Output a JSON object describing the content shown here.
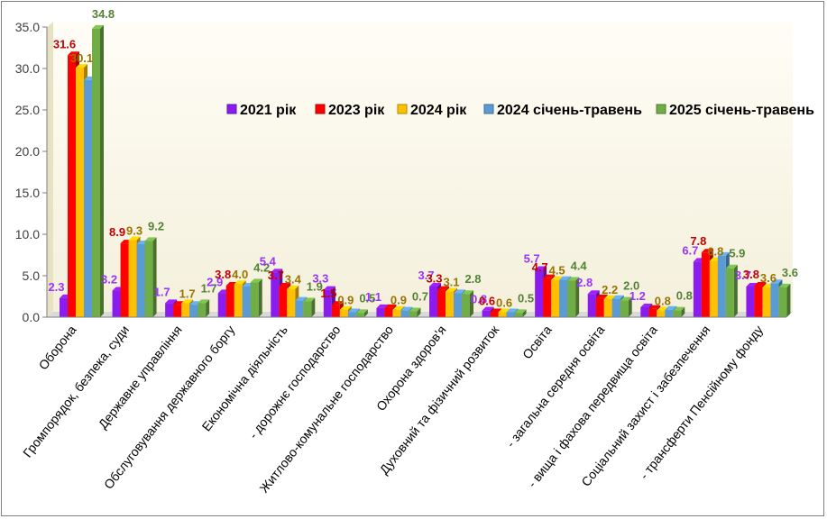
{
  "chart_data": {
    "type": "bar",
    "ylim": [
      0,
      35
    ],
    "yticks": [
      "0.0",
      "5.0",
      "10.0",
      "15.0",
      "20.0",
      "25.0",
      "30.0",
      "35.0"
    ],
    "grid": false,
    "legend_position": "right",
    "categories": [
      "Оборона",
      "Громпорядок, безпека, суди",
      "Державне управління",
      "Обслуговування державного боргу",
      "Економічна діяльність",
      "- дорожнє господарство",
      "Житлово-комунальне господарство",
      "Охорона здоров'я",
      "Духовний та фізичний розвиток",
      "Освіта",
      "- загальна середня освіта",
      "- вища і фахова передвища освіта",
      "Соціальний захист і забезпечення",
      "- трансферти Пенсійному фонду"
    ],
    "series": [
      {
        "name": "2021 рік",
        "color": "#8b1cf0",
        "label_color": "#9933ff",
        "values": [
          2.3,
          3.2,
          1.7,
          2.9,
          5.4,
          3.3,
          1.1,
          3.7,
          0.8,
          5.7,
          2.8,
          1.2,
          6.7,
          3.7
        ]
      },
      {
        "name": "2023 рік",
        "color": "#ff0000",
        "label_color": "#c00000",
        "values": [
          31.6,
          8.9,
          1.5,
          3.8,
          3.7,
          1.5,
          1.1,
          3.3,
          0.6,
          4.7,
          2.3,
          1.0,
          7.8,
          3.8
        ]
      },
      {
        "name": "2024 рік",
        "color": "#ffc000",
        "label_color": "#997300",
        "values": [
          30.1,
          9.3,
          1.7,
          4.0,
          3.4,
          0.9,
          0.9,
          3.1,
          0.6,
          4.5,
          2.2,
          0.8,
          6.8,
          3.6
        ]
      },
      {
        "name": "2024 січень-травень",
        "color": "#5b9bd5",
        "label_color": "#2e75b6",
        "values": [
          28.6,
          8.8,
          1.5,
          3.7,
          2.0,
          0.6,
          0.8,
          2.9,
          0.6,
          4.5,
          2.2,
          0.9,
          7.4,
          4.1
        ]
      },
      {
        "name": "2025 січень-травень",
        "color": "#70ad47",
        "label_color": "#548235",
        "values": [
          34.8,
          9.2,
          1.7,
          4.2,
          1.9,
          0.5,
          0.7,
          2.8,
          0.5,
          4.4,
          2.0,
          0.8,
          5.9,
          3.6
        ]
      }
    ],
    "data_labels": [
      [
        "2.3",
        "3.2",
        "1.7",
        "2.9",
        "5.4",
        "3.3",
        "1.1",
        "3.7",
        "0.8",
        "5.7",
        "2.8",
        "1.2",
        "6.7",
        "3.7"
      ],
      [
        "31.6",
        "8.9",
        "",
        "3.8",
        "3.7",
        "1.5",
        "",
        "3.3",
        "0.6",
        "4.7",
        "",
        "",
        "7.8",
        "3.8"
      ],
      [
        "30.1",
        "9.3",
        "1.7",
        "4.0",
        "3.4",
        "0.9",
        "0.9",
        "3.1",
        "0.6",
        "4.5",
        "2.2",
        "0.8",
        "6.8",
        "3.6"
      ],
      [
        "",
        "",
        "",
        "",
        "",
        "",
        "",
        "",
        "",
        "",
        "",
        "",
        "",
        ""
      ],
      [
        "34.8",
        "9.2",
        "1.7",
        "4.2",
        "1.9",
        "0.5",
        "0.7",
        "2.8",
        "0.5",
        "4.4",
        "2.0",
        "0.8",
        "5.9",
        "3.6"
      ]
    ]
  }
}
